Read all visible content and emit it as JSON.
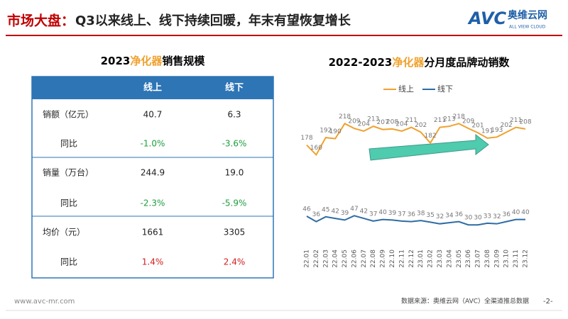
{
  "header": {
    "title_lead": "市场大盘：",
    "title_rest": "Q3以来线上、线下持续回暖，年末有望恢复增长",
    "logo": "AVC",
    "logo_cn": "奥维云网",
    "logo_en": "ALL VIEW CLOUD"
  },
  "table": {
    "title": [
      "2023",
      "净化器",
      "销售规模"
    ],
    "header": [
      "线上",
      "线下"
    ],
    "rows": [
      [
        "销额（亿元）",
        "40.7",
        "6.3"
      ],
      [
        "同比",
        "-1.0%",
        "-3.6%"
      ],
      [
        "销量（万台）",
        "244.9",
        "19.0"
      ],
      [
        "同比",
        "-2.3%",
        "-5.9%"
      ],
      [
        "均价（元）",
        "1661",
        "3305"
      ],
      [
        "同比",
        "1.4%",
        "2.4%"
      ]
    ]
  },
  "chart_data": {
    "type": "line",
    "title": [
      "2022-2023",
      "净化器",
      "分月度品牌动销数"
    ],
    "categories": [
      "22.01",
      "22.02",
      "22.03",
      "22.04",
      "22.05",
      "22.06",
      "22.07",
      "22.08",
      "22.09",
      "22.10",
      "22.11",
      "22.12",
      "23.01",
      "23.02",
      "23.03",
      "23.04",
      "23.05",
      "23.06",
      "23.07",
      "23.08",
      "23.09",
      "23.10",
      "23.11",
      "23.12"
    ],
    "series": [
      {
        "name": "线上",
        "color": "#f0a12e",
        "values": [
          178,
          160,
          192,
          190,
          218,
          209,
          204,
          213,
          207,
          208,
          204,
          211,
          202,
          182,
          211,
          213,
          218,
          209,
          201,
          191,
          193,
          202,
          211,
          208
        ]
      },
      {
        "name": "线下",
        "color": "#2e6ca4",
        "values": [
          46,
          36,
          45,
          42,
          39,
          47,
          42,
          37,
          40,
          39,
          37,
          36,
          38,
          35,
          32,
          34,
          36,
          30,
          30,
          33,
          32,
          36,
          40,
          40
        ]
      }
    ],
    "ylim": [
      0,
      250
    ]
  },
  "footer": {
    "site": "www.avc-mr.com",
    "source": "数据来源：奥维云网（AVC）全渠道推总数据",
    "page": "-2-"
  }
}
